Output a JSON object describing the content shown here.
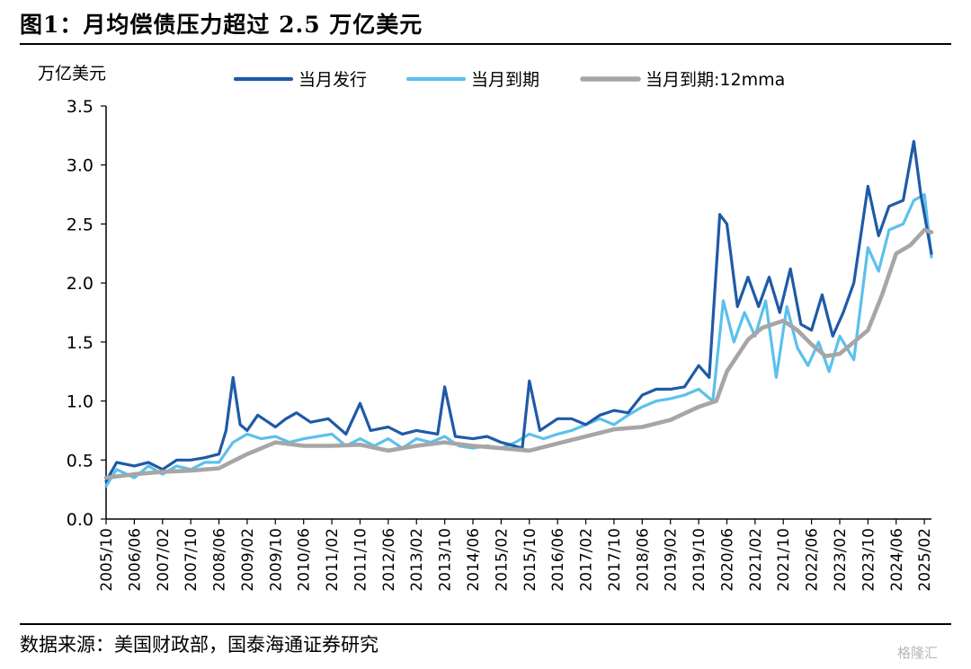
{
  "title": "图1：月均偿债压力超过 2.5 万亿美元",
  "source": "数据来源：美国财政部，国泰海通证券研究",
  "watermark": "格隆汇",
  "colors": {
    "issuance": "#1f5aa6",
    "maturity": "#5bc0ec",
    "mma": "#a6a6a6"
  },
  "chart_data": {
    "type": "line",
    "ylabel": "万亿美元",
    "ylim": [
      0,
      3.5
    ],
    "yticks": [
      "0.0",
      "0.5",
      "1.0",
      "1.5",
      "2.0",
      "2.5",
      "3.0",
      "3.5"
    ],
    "x_start": "2005/10",
    "x_end": "2025/04",
    "xticks": [
      "2005/10",
      "2006/06",
      "2007/02",
      "2007/10",
      "2008/06",
      "2009/02",
      "2009/10",
      "2010/06",
      "2011/02",
      "2011/10",
      "2012/06",
      "2013/02",
      "2013/10",
      "2014/06",
      "2015/02",
      "2015/10",
      "2016/06",
      "2017/02",
      "2017/10",
      "2018/06",
      "2019/02",
      "2019/10",
      "2020/06",
      "2021/02",
      "2021/10",
      "2022/06",
      "2023/02",
      "2023/10",
      "2024/06",
      "2025/02"
    ],
    "grid": false,
    "legend_position": "top",
    "series": [
      {
        "name": "当月发行",
        "points": [
          [
            "2005/10",
            0.32
          ],
          [
            "2006/01",
            0.48
          ],
          [
            "2006/06",
            0.45
          ],
          [
            "2006/10",
            0.48
          ],
          [
            "2007/02",
            0.42
          ],
          [
            "2007/06",
            0.5
          ],
          [
            "2007/10",
            0.5
          ],
          [
            "2008/02",
            0.52
          ],
          [
            "2008/06",
            0.55
          ],
          [
            "2008/08",
            0.75
          ],
          [
            "2008/10",
            1.2
          ],
          [
            "2008/12",
            0.8
          ],
          [
            "2009/02",
            0.75
          ],
          [
            "2009/05",
            0.88
          ],
          [
            "2009/08",
            0.82
          ],
          [
            "2009/10",
            0.78
          ],
          [
            "2010/01",
            0.85
          ],
          [
            "2010/04",
            0.9
          ],
          [
            "2010/08",
            0.82
          ],
          [
            "2011/01",
            0.85
          ],
          [
            "2011/06",
            0.72
          ],
          [
            "2011/10",
            0.98
          ],
          [
            "2012/01",
            0.75
          ],
          [
            "2012/06",
            0.78
          ],
          [
            "2012/10",
            0.72
          ],
          [
            "2013/02",
            0.75
          ],
          [
            "2013/08",
            0.72
          ],
          [
            "2013/10",
            1.12
          ],
          [
            "2014/01",
            0.7
          ],
          [
            "2014/06",
            0.68
          ],
          [
            "2014/10",
            0.7
          ],
          [
            "2015/02",
            0.65
          ],
          [
            "2015/08",
            0.6
          ],
          [
            "2015/10",
            1.17
          ],
          [
            "2016/01",
            0.75
          ],
          [
            "2016/06",
            0.85
          ],
          [
            "2016/10",
            0.85
          ],
          [
            "2017/02",
            0.8
          ],
          [
            "2017/06",
            0.88
          ],
          [
            "2017/10",
            0.92
          ],
          [
            "2018/02",
            0.9
          ],
          [
            "2018/06",
            1.05
          ],
          [
            "2018/10",
            1.1
          ],
          [
            "2019/02",
            1.1
          ],
          [
            "2019/06",
            1.12
          ],
          [
            "2019/10",
            1.3
          ],
          [
            "2020/01",
            1.2
          ],
          [
            "2020/04",
            2.58
          ],
          [
            "2020/06",
            2.5
          ],
          [
            "2020/09",
            1.8
          ],
          [
            "2020/12",
            2.05
          ],
          [
            "2021/03",
            1.8
          ],
          [
            "2021/06",
            2.05
          ],
          [
            "2021/09",
            1.75
          ],
          [
            "2021/12",
            2.12
          ],
          [
            "2022/03",
            1.65
          ],
          [
            "2022/06",
            1.6
          ],
          [
            "2022/09",
            1.9
          ],
          [
            "2022/12",
            1.55
          ],
          [
            "2023/03",
            1.75
          ],
          [
            "2023/06",
            2.0
          ],
          [
            "2023/10",
            2.82
          ],
          [
            "2024/01",
            2.4
          ],
          [
            "2024/04",
            2.65
          ],
          [
            "2024/08",
            2.7
          ],
          [
            "2024/11",
            3.2
          ],
          [
            "2025/01",
            2.75
          ],
          [
            "2025/04",
            2.25
          ]
        ]
      },
      {
        "name": "当月到期",
        "points": [
          [
            "2005/10",
            0.28
          ],
          [
            "2006/01",
            0.42
          ],
          [
            "2006/06",
            0.35
          ],
          [
            "2006/10",
            0.45
          ],
          [
            "2007/02",
            0.38
          ],
          [
            "2007/06",
            0.45
          ],
          [
            "2007/10",
            0.42
          ],
          [
            "2008/02",
            0.48
          ],
          [
            "2008/06",
            0.48
          ],
          [
            "2008/10",
            0.65
          ],
          [
            "2009/02",
            0.72
          ],
          [
            "2009/06",
            0.68
          ],
          [
            "2009/10",
            0.7
          ],
          [
            "2010/02",
            0.65
          ],
          [
            "2010/06",
            0.68
          ],
          [
            "2010/10",
            0.7
          ],
          [
            "2011/02",
            0.72
          ],
          [
            "2011/06",
            0.62
          ],
          [
            "2011/10",
            0.68
          ],
          [
            "2012/02",
            0.62
          ],
          [
            "2012/06",
            0.68
          ],
          [
            "2012/10",
            0.6
          ],
          [
            "2013/02",
            0.68
          ],
          [
            "2013/06",
            0.65
          ],
          [
            "2013/10",
            0.7
          ],
          [
            "2014/02",
            0.62
          ],
          [
            "2014/06",
            0.6
          ],
          [
            "2014/10",
            0.62
          ],
          [
            "2015/02",
            0.6
          ],
          [
            "2015/06",
            0.65
          ],
          [
            "2015/10",
            0.72
          ],
          [
            "2016/02",
            0.68
          ],
          [
            "2016/06",
            0.72
          ],
          [
            "2016/10",
            0.75
          ],
          [
            "2017/02",
            0.8
          ],
          [
            "2017/06",
            0.85
          ],
          [
            "2017/10",
            0.8
          ],
          [
            "2018/02",
            0.88
          ],
          [
            "2018/06",
            0.95
          ],
          [
            "2018/10",
            1.0
          ],
          [
            "2019/02",
            1.02
          ],
          [
            "2019/06",
            1.05
          ],
          [
            "2019/10",
            1.1
          ],
          [
            "2020/02",
            1.0
          ],
          [
            "2020/05",
            1.85
          ],
          [
            "2020/08",
            1.5
          ],
          [
            "2020/11",
            1.75
          ],
          [
            "2021/02",
            1.55
          ],
          [
            "2021/05",
            1.85
          ],
          [
            "2021/08",
            1.2
          ],
          [
            "2021/11",
            1.8
          ],
          [
            "2022/02",
            1.45
          ],
          [
            "2022/05",
            1.3
          ],
          [
            "2022/08",
            1.5
          ],
          [
            "2022/11",
            1.25
          ],
          [
            "2023/02",
            1.55
          ],
          [
            "2023/06",
            1.35
          ],
          [
            "2023/10",
            2.3
          ],
          [
            "2024/01",
            2.1
          ],
          [
            "2024/04",
            2.45
          ],
          [
            "2024/08",
            2.5
          ],
          [
            "2024/11",
            2.7
          ],
          [
            "2025/02",
            2.75
          ],
          [
            "2025/04",
            2.22
          ]
        ]
      },
      {
        "name": "当月到期:12mma",
        "points": [
          [
            "2005/10",
            0.35
          ],
          [
            "2006/06",
            0.38
          ],
          [
            "2007/02",
            0.4
          ],
          [
            "2007/10",
            0.41
          ],
          [
            "2008/06",
            0.43
          ],
          [
            "2009/02",
            0.55
          ],
          [
            "2009/10",
            0.65
          ],
          [
            "2010/06",
            0.62
          ],
          [
            "2011/02",
            0.62
          ],
          [
            "2011/10",
            0.63
          ],
          [
            "2012/06",
            0.58
          ],
          [
            "2013/02",
            0.62
          ],
          [
            "2013/10",
            0.65
          ],
          [
            "2014/06",
            0.62
          ],
          [
            "2015/02",
            0.6
          ],
          [
            "2015/10",
            0.58
          ],
          [
            "2016/06",
            0.64
          ],
          [
            "2017/02",
            0.7
          ],
          [
            "2017/10",
            0.76
          ],
          [
            "2018/06",
            0.78
          ],
          [
            "2019/02",
            0.84
          ],
          [
            "2019/10",
            0.95
          ],
          [
            "2020/03",
            1.0
          ],
          [
            "2020/06",
            1.25
          ],
          [
            "2020/12",
            1.52
          ],
          [
            "2021/04",
            1.62
          ],
          [
            "2021/10",
            1.68
          ],
          [
            "2022/02",
            1.6
          ],
          [
            "2022/06",
            1.48
          ],
          [
            "2022/10",
            1.38
          ],
          [
            "2023/02",
            1.4
          ],
          [
            "2023/06",
            1.5
          ],
          [
            "2023/10",
            1.6
          ],
          [
            "2024/02",
            1.9
          ],
          [
            "2024/06",
            2.25
          ],
          [
            "2024/10",
            2.32
          ],
          [
            "2025/02",
            2.45
          ],
          [
            "2025/04",
            2.43
          ]
        ]
      }
    ]
  }
}
